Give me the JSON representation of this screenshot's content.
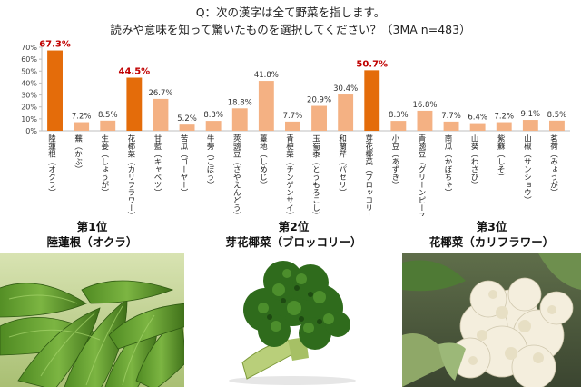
{
  "question": {
    "line1": "Q：次の漢字は全て野菜を指します。",
    "line2": "読みや意味を知って驚いたものを選択してください？（3MA n=483）"
  },
  "colors": {
    "highlight": "#e46c0a",
    "normal": "#f4b183",
    "highlight_label": "#c00000"
  },
  "chart_data": {
    "type": "bar",
    "title": "",
    "xlabel": "",
    "ylabel": "",
    "ylim": [
      0,
      70
    ],
    "yticks": [
      0,
      10,
      20,
      30,
      40,
      50,
      60,
      70
    ],
    "ytick_labels": [
      "0%",
      "10%",
      "20%",
      "30%",
      "40%",
      "50%",
      "60%",
      "70%"
    ],
    "grid": false,
    "categories": [
      "陸蓮根（オクラ）",
      "蕪（かぶ）",
      "生姜（しょうが）",
      "花椰菜（カリフラワー）",
      "甘藍（キャベツ）",
      "苦瓜（ゴーヤー）",
      "牛蒡（ごぼう）",
      "莢豌豆（さやえんどう）",
      "薹地（しめじ）",
      "青梗菜（チンゲンサイ）",
      "玉蜀黍（とうもろこし）",
      "和蘭芹（パセリ）",
      "芽花椰菜（ブロッコリー）",
      "小豆（あずき）",
      "青豌豆（グリーンピース）",
      "南瓜（かぼちゃ）",
      "山葵（わさび）",
      "紫蘇（しそ）",
      "山椒（サンショウ）",
      "茗荷（みょうが）"
    ],
    "values": [
      67.3,
      7.2,
      8.5,
      44.5,
      26.7,
      5.2,
      8.3,
      18.8,
      41.8,
      7.7,
      20.9,
      30.4,
      50.7,
      8.3,
      16.8,
      7.7,
      6.4,
      7.2,
      9.1,
      8.5
    ],
    "value_labels": [
      "67.3%",
      "7.2%",
      "8.5%",
      "44.5%",
      "26.7%",
      "5.2%",
      "8.3%",
      "18.8%",
      "41.8%",
      "7.7%",
      "20.9%",
      "30.4%",
      "50.7%",
      "8.3%",
      "16.8%",
      "7.7%",
      "6.4%",
      "7.2%",
      "9.1%",
      "8.5%"
    ],
    "highlighted": [
      0,
      3,
      12
    ]
  },
  "ranks": [
    {
      "title": "第1位",
      "name": "陸蓮根（オクラ）",
      "photo_icon": "okra-photo"
    },
    {
      "title": "第2位",
      "name": "芽花椰菜（ブロッコリー）",
      "photo_icon": "broccoli-photo"
    },
    {
      "title": "第3位",
      "name": "花椰菜（カリフラワー）",
      "photo_icon": "cauliflower-photo"
    }
  ]
}
